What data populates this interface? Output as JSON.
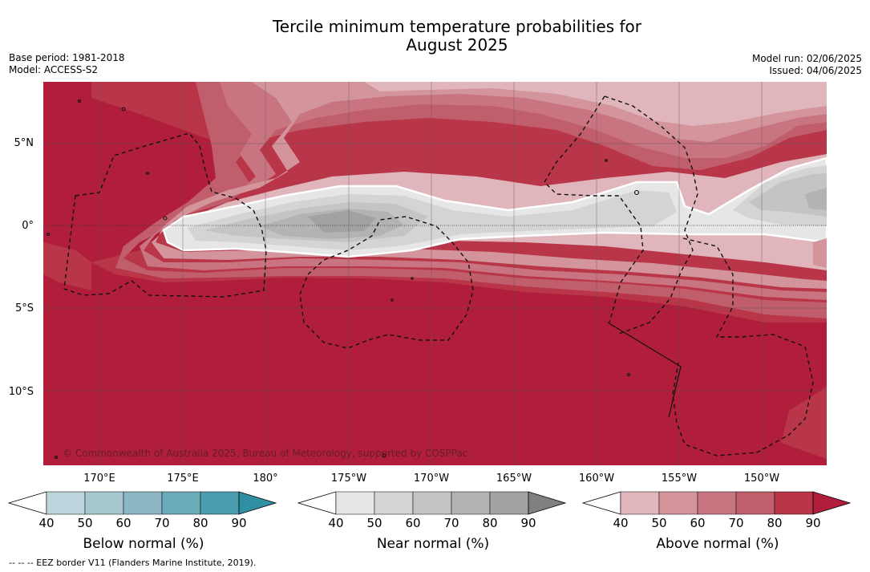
{
  "title_line1": "Tercile minimum temperature probabilities for",
  "title_line2": "August 2025",
  "base_period": "Base period: 1981-2018",
  "model": "Model: ACCESS-S2",
  "model_run": "Model run: 02/06/2025",
  "issued": "Issued: 04/06/2025",
  "copyright": "© Commonwealth of Australia 2025, Bureau of Meteorology, supported by COSPPac",
  "footnote": "--  --  -- EEZ border V11 (Flanders Marine Institute, 2019).",
  "lat_labels": [
    "5°N",
    "0°",
    "5°S",
    "10°S"
  ],
  "lon_labels": [
    "170°E",
    "175°E",
    "180°",
    "175°W",
    "170°W",
    "165°W",
    "160°W",
    "155°W",
    "150°W"
  ],
  "colorbars": [
    {
      "title": "Below normal (%)",
      "ticks": [
        "40",
        "50",
        "60",
        "70",
        "80",
        "90"
      ],
      "colors": [
        "#ffffff",
        "#bcd4db",
        "#a6c7ce",
        "#8ab7c3",
        "#6baab8",
        "#4a9daf",
        "#2f8fa3"
      ]
    },
    {
      "title": "Near normal (%)",
      "ticks": [
        "40",
        "50",
        "60",
        "70",
        "80",
        "90"
      ],
      "colors": [
        "#ffffff",
        "#e6e6e6",
        "#d4d4d4",
        "#c4c4c4",
        "#b3b3b3",
        "#a2a2a2",
        "#808080"
      ]
    },
    {
      "title": "Above normal (%)",
      "ticks": [
        "40",
        "50",
        "60",
        "70",
        "80",
        "90"
      ],
      "colors": [
        "#ffffff",
        "#e0b5bb",
        "#d4949c",
        "#c97581",
        "#c15e6c",
        "#b93649",
        "#b01e3b"
      ]
    }
  ],
  "map_colors": {
    "above_90": "#b01e3b",
    "above_80": "#b93649",
    "above_70": "#c15e6c",
    "above_60": "#c97581",
    "above_50": "#d4949c",
    "above_40": "#e0b5bb",
    "near_40": "#e6e6e6",
    "near_50": "#d4d4d4",
    "near_60": "#c4c4c4",
    "near_70": "#b3b3b3",
    "near_80": "#a2a2a2"
  }
}
